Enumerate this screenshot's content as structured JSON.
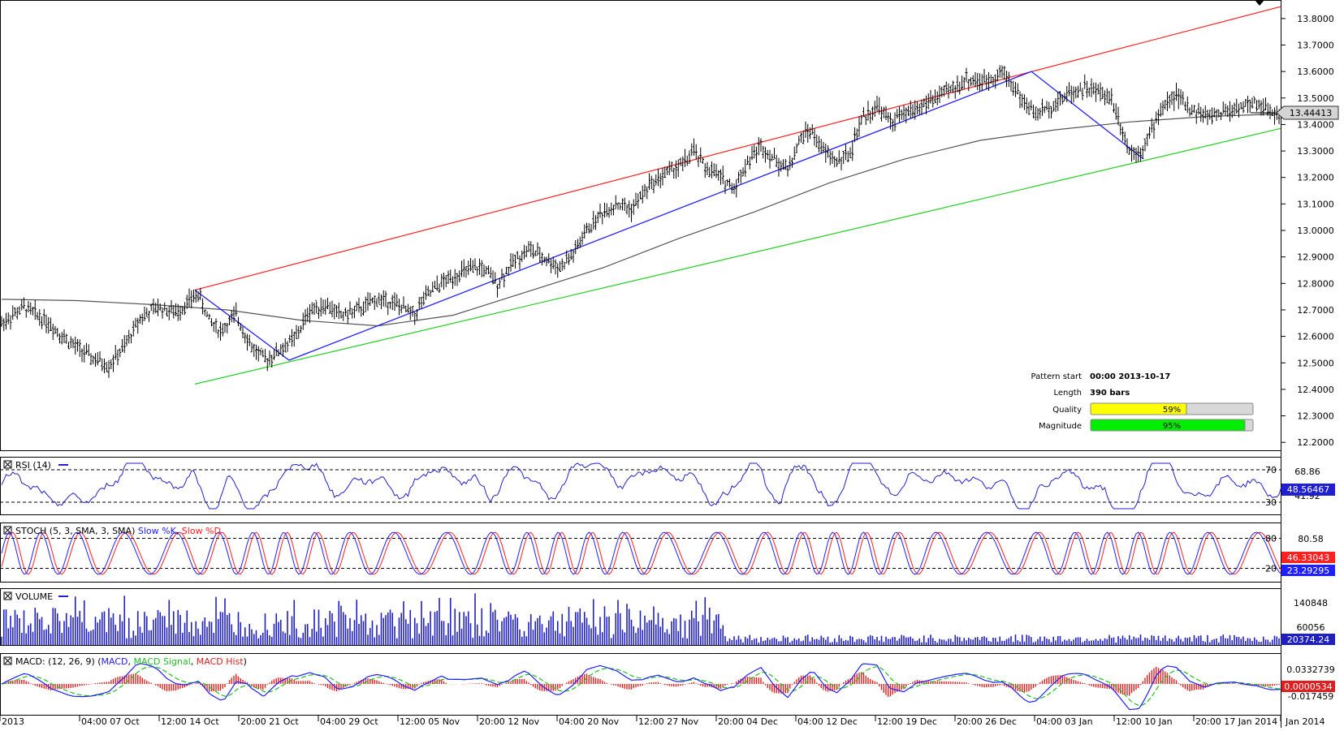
{
  "price_axis": [
    "13.8000",
    "13.7000",
    "13.6000",
    "13.5000",
    "13.4000",
    "13.3000",
    "13.2000",
    "13.1000",
    "13.0000",
    "12.9000",
    "12.8000",
    "12.7000",
    "12.6000",
    "12.5000",
    "12.4000",
    "12.3000",
    "12.2000"
  ],
  "current_price": "13.44413",
  "pattern_info": {
    "start_label": "Pattern start",
    "start_value": "00:00 2013-10-17",
    "length_label": "Length",
    "length_value": "390 bars",
    "quality_label": "Quality",
    "quality_value": "59%",
    "quality_pct": 59,
    "magnitude_label": "Magnitude",
    "magnitude_value": "95%",
    "magnitude_pct": 95
  },
  "rsi": {
    "title": "RSI (14)",
    "levels": [
      "70",
      "30"
    ],
    "axis": [
      "68.86",
      "41.92"
    ],
    "current": "48.56467"
  },
  "stoch": {
    "title_prefix": "STOCH (5, 3, SMA, 3, SMA) ",
    "k_label": "Slow %K",
    "d_label": "Slow %D",
    "levels": [
      "80",
      "20"
    ],
    "axis": [
      "80.58"
    ],
    "current_k": "46.33043",
    "current_d": "23.29295"
  },
  "volume": {
    "title": "VOLUME",
    "axis": [
      "140848",
      "60056"
    ],
    "current": "20374.24"
  },
  "macd": {
    "title_prefix": "MACD: (12, 26, 9) (",
    "macd_label": "MACD",
    "signal_label": "MACD Signal",
    "hist_label": "MACD Hist",
    "axis": [
      "0.0332739",
      "-0.017459"
    ],
    "current": "0.0000534"
  },
  "time_axis": [
    "2013",
    "04:00 07 Oct",
    "12:00 14 Oct",
    "20:00 21 Oct",
    "04:00 29 Oct",
    "12:00 05 Nov",
    "20:00 12 Nov",
    "04:00 20 Nov",
    "12:00 27 Nov",
    "20:00 04 Dec",
    "04:00 12 Dec",
    "12:00 19 Dec",
    "20:00 26 Dec",
    "04:00 03 Jan",
    "12:00 10 Jan",
    "20:00 17 Jan 2014",
    "Jan 2014"
  ],
  "colors": {
    "resistance": "#ff2020",
    "support": "#20d020",
    "pattern": "#2020ff",
    "ma": "#555555",
    "rsi": "#2020d0",
    "stoch_k": "#2020ff",
    "stoch_d": "#ff2020",
    "volume": "#2020c0",
    "macd": "#2020ff",
    "signal": "#20c020",
    "hist": "#e02020",
    "quality": "#ffff00",
    "magnitude": "#00ee00"
  },
  "chart_data": {
    "type": "candlestick",
    "title": "",
    "ylim": [
      12.17,
      13.87
    ],
    "trendlines": [
      {
        "name": "resistance",
        "from": [
          "12:00 14 Oct",
          12.775
        ],
        "to": [
          "Jan 2014",
          13.845
        ]
      },
      {
        "name": "support",
        "from": [
          "12:00 14 Oct",
          12.42
        ],
        "to": [
          "Jan 2014",
          13.385
        ]
      }
    ],
    "pattern_path": [
      12.775,
      12.51,
      13.6,
      13.27
    ],
    "price_path": [
      [
        0,
        12.65
      ],
      [
        10,
        12.71
      ],
      [
        20,
        12.66
      ],
      [
        30,
        12.58
      ],
      [
        40,
        12.52
      ],
      [
        48,
        12.49
      ],
      [
        55,
        12.56
      ],
      [
        62,
        12.67
      ],
      [
        70,
        12.71
      ],
      [
        78,
        12.69
      ],
      [
        85,
        12.74
      ],
      [
        88,
        12.76
      ],
      [
        93,
        12.66
      ],
      [
        98,
        12.62
      ],
      [
        105,
        12.68
      ],
      [
        112,
        12.56
      ],
      [
        118,
        12.51
      ],
      [
        125,
        12.55
      ],
      [
        132,
        12.6
      ],
      [
        138,
        12.7
      ],
      [
        145,
        12.72
      ],
      [
        152,
        12.68
      ],
      [
        160,
        12.7
      ],
      [
        168,
        12.74
      ],
      [
        175,
        12.73
      ],
      [
        185,
        12.68
      ],
      [
        188,
        12.73
      ],
      [
        195,
        12.79
      ],
      [
        205,
        12.84
      ],
      [
        215,
        12.86
      ],
      [
        222,
        12.8
      ],
      [
        230,
        12.89
      ],
      [
        236,
        12.93
      ],
      [
        242,
        12.9
      ],
      [
        250,
        12.86
      ],
      [
        256,
        12.91
      ],
      [
        262,
        13.0
      ],
      [
        268,
        13.06
      ],
      [
        275,
        13.1
      ],
      [
        282,
        13.08
      ],
      [
        290,
        13.17
      ],
      [
        298,
        13.22
      ],
      [
        305,
        13.25
      ],
      [
        310,
        13.3
      ],
      [
        315,
        13.24
      ],
      [
        322,
        13.2
      ],
      [
        328,
        13.16
      ],
      [
        334,
        13.26
      ],
      [
        340,
        13.32
      ],
      [
        346,
        13.27
      ],
      [
        352,
        13.23
      ],
      [
        358,
        13.35
      ],
      [
        362,
        13.38
      ],
      [
        368,
        13.3
      ],
      [
        374,
        13.26
      ],
      [
        380,
        13.29
      ],
      [
        385,
        13.42
      ],
      [
        392,
        13.47
      ],
      [
        398,
        13.41
      ],
      [
        405,
        13.44
      ],
      [
        412,
        13.47
      ],
      [
        418,
        13.5
      ],
      [
        425,
        13.53
      ],
      [
        432,
        13.57
      ],
      [
        440,
        13.56
      ],
      [
        448,
        13.6
      ],
      [
        452,
        13.56
      ],
      [
        458,
        13.48
      ],
      [
        463,
        13.44
      ],
      [
        470,
        13.47
      ],
      [
        478,
        13.52
      ],
      [
        485,
        13.54
      ],
      [
        492,
        13.52
      ],
      [
        497,
        13.5
      ],
      [
        500,
        13.43
      ],
      [
        505,
        13.3
      ],
      [
        510,
        13.3
      ],
      [
        514,
        13.36
      ],
      [
        520,
        13.47
      ],
      [
        526,
        13.51
      ],
      [
        532,
        13.46
      ],
      [
        540,
        13.43
      ],
      [
        548,
        13.45
      ],
      [
        556,
        13.47
      ],
      [
        562,
        13.48
      ],
      [
        568,
        13.45
      ],
      [
        573,
        13.44
      ]
    ],
    "ma_path": [
      12.74,
      12.735,
      12.72,
      12.7,
      12.66,
      12.64,
      12.68,
      12.77,
      12.86,
      12.97,
      13.07,
      13.18,
      13.27,
      13.34,
      13.38,
      13.41,
      13.43,
      13.44
    ],
    "last_value": 13.44413
  }
}
